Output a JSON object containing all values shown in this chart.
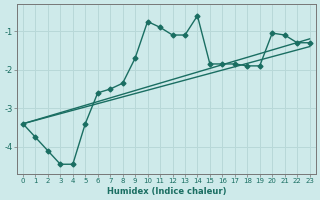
{
  "xlabel": "Humidex (Indice chaleur)",
  "ylabel": "",
  "bg_color": "#ceeaea",
  "line_color": "#1a6e62",
  "grid_color": "#b8d8d8",
  "axis_color": "#777777",
  "xlim": [
    -0.5,
    23.5
  ],
  "ylim": [
    -4.7,
    -0.3
  ],
  "yticks": [
    -4,
    -3,
    -2,
    -1
  ],
  "xticks": [
    0,
    1,
    2,
    3,
    4,
    5,
    6,
    7,
    8,
    9,
    10,
    11,
    12,
    13,
    14,
    15,
    16,
    17,
    18,
    19,
    20,
    21,
    22,
    23
  ],
  "series1_x": [
    0,
    1,
    2,
    3,
    4,
    5,
    6,
    7,
    8,
    9,
    10,
    11,
    12,
    13,
    14,
    15,
    16,
    17,
    18,
    19,
    20,
    21,
    22,
    23
  ],
  "series1_y": [
    -3.4,
    -3.75,
    -4.1,
    -4.45,
    -4.45,
    -3.4,
    -2.6,
    -2.5,
    -2.35,
    -1.7,
    -0.75,
    -0.9,
    -1.1,
    -1.1,
    -0.6,
    -1.85,
    -1.85,
    -1.85,
    -1.9,
    -1.9,
    -1.05,
    -1.1,
    -1.3,
    -1.3
  ],
  "series2_x": [
    0,
    23
  ],
  "series2_y": [
    -3.4,
    -1.2
  ],
  "series3_x": [
    0,
    23
  ],
  "series3_y": [
    -3.4,
    -1.4
  ],
  "marker": "D",
  "markersize": 2.5,
  "linewidth": 1.0
}
